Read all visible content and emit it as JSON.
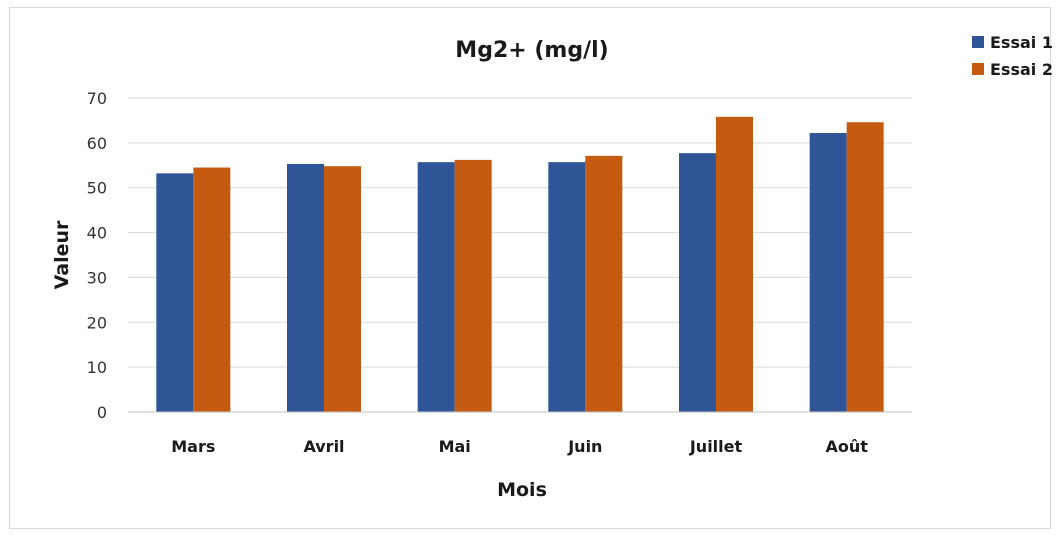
{
  "chart_data": {
    "type": "bar",
    "title": "Mg2+ (mg/l)",
    "xlabel": "Mois",
    "ylabel": "Valeur",
    "categories": [
      "Mars",
      "Avril",
      "Mai",
      "Juin",
      "Juillet",
      "Août"
    ],
    "series": [
      {
        "name": "Essai 1",
        "color": "#2f5597",
        "values": [
          53.2,
          55.3,
          55.7,
          55.7,
          57.7,
          62.2
        ]
      },
      {
        "name": "Essai 2",
        "color": "#c55a11",
        "values": [
          54.5,
          54.8,
          56.2,
          57.1,
          65.8,
          64.6
        ]
      }
    ],
    "ylim": [
      0,
      70
    ],
    "yticks": [
      0,
      10,
      20,
      30,
      40,
      50,
      60,
      70
    ],
    "grid": true,
    "legend_position": "top-right"
  }
}
